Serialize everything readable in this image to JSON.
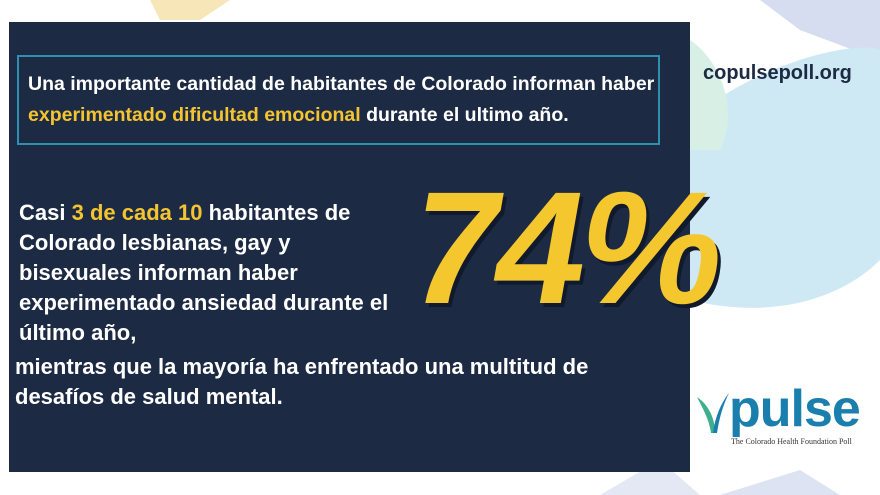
{
  "callout": {
    "before": "Una importante cantidad de habitantes de Colorado informan haber ",
    "highlight": "experimentado dificultad emocional",
    "after": " durante el ultimo año."
  },
  "stat": {
    "before": "Casi ",
    "highlight": "3 de cada 10",
    "after": " habitantes de Colorado lesbianas, gay y bisexuales informan haber experimentado ansiedad durante el último año,",
    "continuation": "mientras que la mayoría ha enfrentado una multitud de desafíos de salud mental.",
    "percent": "74%"
  },
  "brand": {
    "site": "copulsepoll.org",
    "logo_word": "pulse",
    "logo_sub": "The Colorado Health Foundation Poll"
  },
  "colors": {
    "panel": "#1c2a44",
    "accent_yellow": "#f4c430",
    "border_teal": "#2e8fb0",
    "logo_blue": "#1b7fae"
  }
}
